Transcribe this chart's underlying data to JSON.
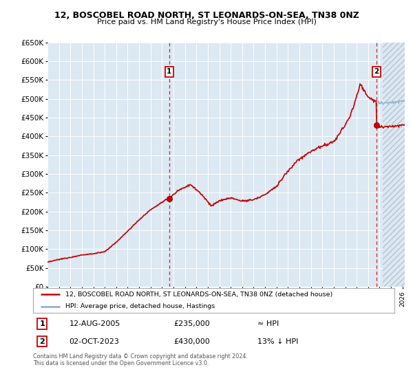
{
  "title": "12, BOSCOBEL ROAD NORTH, ST LEONARDS-ON-SEA, TN38 0NZ",
  "subtitle": "Price paid vs. HM Land Registry's House Price Index (HPI)",
  "legend_line1": "12, BOSCOBEL ROAD NORTH, ST LEONARDS-ON-SEA, TN38 0NZ (detached house)",
  "legend_line2": "HPI: Average price, detached house, Hastings",
  "annotation1_date": "12-AUG-2005",
  "annotation1_price": "£235,000",
  "annotation1_hpi": "≈ HPI",
  "annotation1_year": 2005.62,
  "annotation1_value": 235000,
  "annotation2_date": "02-OCT-2023",
  "annotation2_price": "£430,000",
  "annotation2_hpi": "13% ↓ HPI",
  "annotation2_year": 2023.75,
  "annotation2_value": 430000,
  "footer": "Contains HM Land Registry data © Crown copyright and database right 2024.\nThis data is licensed under the Open Government Licence v3.0.",
  "price_line_color": "#cc0000",
  "hpi_line_color": "#88aacc",
  "plot_bg_color": "#dce8f2",
  "ylim": [
    0,
    650000
  ],
  "xlim_start": 1995,
  "xlim_end": 2026.2,
  "future_start": 2024.3,
  "sale1_year": 2005.62,
  "sale1_price": 235000,
  "sale2_year": 2023.75,
  "sale2_price": 430000
}
